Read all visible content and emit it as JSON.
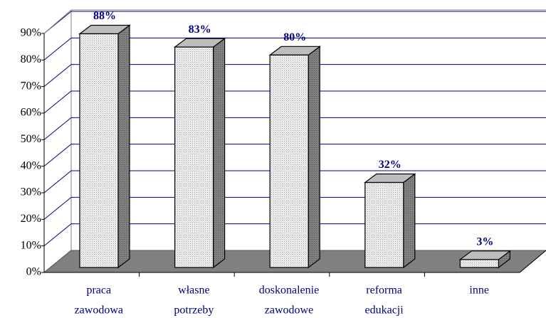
{
  "chart_data": {
    "type": "bar3d",
    "categories": [
      [
        "praca",
        "zawodowa"
      ],
      [
        "własne",
        "potrzeby"
      ],
      [
        "doskonalenie",
        "zawodowe"
      ],
      [
        "reforma",
        "edukacji"
      ],
      [
        "inne"
      ]
    ],
    "values": [
      88,
      83,
      80,
      32,
      3
    ],
    "value_labels": [
      "88%",
      "83%",
      "80%",
      "32%",
      "3%"
    ],
    "ylim": [
      0,
      90
    ],
    "yticks": [
      {
        "value": 0,
        "label": "0%"
      },
      {
        "value": 10,
        "label": "10%"
      },
      {
        "value": 20,
        "label": "20%"
      },
      {
        "value": 30,
        "label": "30%"
      },
      {
        "value": 40,
        "label": "40%"
      },
      {
        "value": 50,
        "label": "50%"
      },
      {
        "value": 60,
        "label": "60%"
      },
      {
        "value": 70,
        "label": "70%"
      },
      {
        "value": 80,
        "label": "80%"
      },
      {
        "value": 90,
        "label": "90%"
      }
    ],
    "grid": true,
    "color": "#e0e0e0"
  }
}
